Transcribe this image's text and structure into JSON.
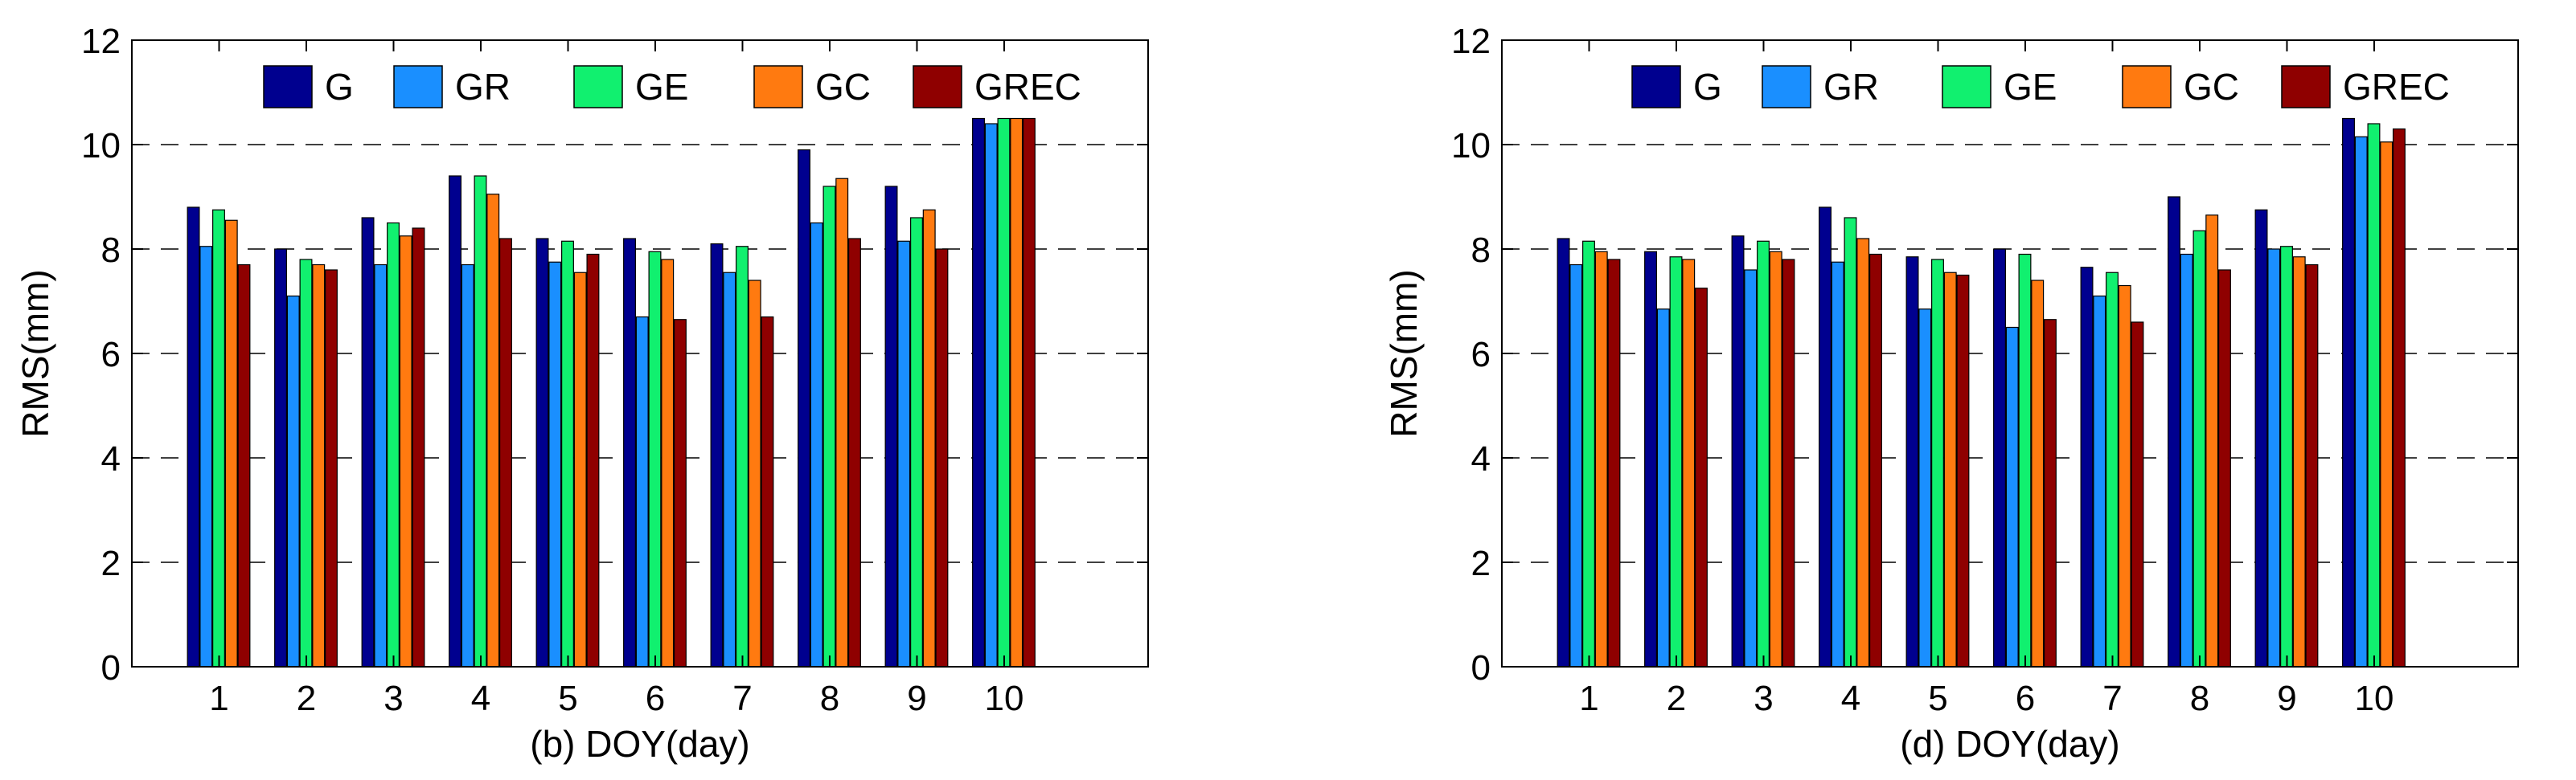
{
  "colors": {
    "G": "#00008f",
    "GR": "#1a8fff",
    "GE": "#11f06f",
    "GC": "#ff7a10",
    "GREC": "#8f0000"
  },
  "chart_data": [
    {
      "type": "bar",
      "xlabel": "(b) DOY(day)",
      "ylabel": "RMS(mm)",
      "ylim": [
        0,
        12
      ],
      "yticks": [
        "0",
        "2",
        "4",
        "6",
        "8",
        "10",
        "12"
      ],
      "categories": [
        "1",
        "2",
        "3",
        "4",
        "5",
        "6",
        "7",
        "8",
        "9",
        "10"
      ],
      "grid": "dashed-horizontal",
      "legend_position": "top",
      "series": [
        {
          "name": "G",
          "values": [
            8.8,
            8.0,
            8.6,
            9.4,
            8.2,
            8.2,
            8.1,
            9.9,
            9.2,
            10.5
          ]
        },
        {
          "name": "GR",
          "values": [
            8.05,
            7.1,
            7.7,
            7.7,
            7.75,
            6.7,
            7.55,
            8.5,
            8.15,
            10.4
          ]
        },
        {
          "name": "GE",
          "values": [
            8.75,
            7.8,
            8.5,
            9.4,
            8.15,
            7.95,
            8.05,
            9.2,
            8.6,
            10.5
          ]
        },
        {
          "name": "GC",
          "values": [
            8.55,
            7.7,
            8.25,
            9.05,
            7.55,
            7.8,
            7.4,
            9.35,
            8.75,
            10.5
          ]
        },
        {
          "name": "GREC",
          "values": [
            7.7,
            7.6,
            8.4,
            8.2,
            7.9,
            6.65,
            6.7,
            8.2,
            8.0,
            10.5
          ]
        }
      ]
    },
    {
      "type": "bar",
      "xlabel": "(d) DOY(day)",
      "ylabel": "RMS(mm)",
      "ylim": [
        0,
        12
      ],
      "yticks": [
        "0",
        "2",
        "4",
        "6",
        "8",
        "10",
        "12"
      ],
      "categories": [
        "1",
        "2",
        "3",
        "4",
        "5",
        "6",
        "7",
        "8",
        "9",
        "10"
      ],
      "grid": "dashed-horizontal",
      "legend_position": "top",
      "series": [
        {
          "name": "G",
          "values": [
            8.2,
            7.95,
            8.25,
            8.8,
            7.85,
            8.0,
            7.65,
            9.0,
            8.75,
            10.5
          ]
        },
        {
          "name": "GR",
          "values": [
            7.7,
            6.85,
            7.6,
            7.75,
            6.85,
            6.5,
            7.1,
            7.9,
            8.0,
            10.15
          ]
        },
        {
          "name": "GE",
          "values": [
            8.15,
            7.85,
            8.15,
            8.6,
            7.8,
            7.9,
            7.55,
            8.35,
            8.05,
            10.4
          ]
        },
        {
          "name": "GC",
          "values": [
            7.95,
            7.8,
            7.95,
            8.2,
            7.55,
            7.4,
            7.3,
            8.65,
            7.85,
            10.05
          ]
        },
        {
          "name": "GREC",
          "values": [
            7.8,
            7.25,
            7.8,
            7.9,
            7.5,
            6.65,
            6.6,
            7.6,
            7.7,
            10.3
          ]
        }
      ]
    }
  ]
}
